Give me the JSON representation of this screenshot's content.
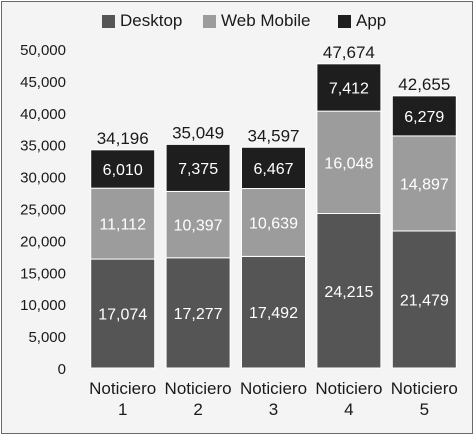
{
  "chart_data": {
    "type": "bar",
    "stacked": true,
    "categories": [
      [
        "Noticiero",
        "1"
      ],
      [
        "Noticiero",
        "2"
      ],
      [
        "Noticiero",
        "3"
      ],
      [
        "Noticiero",
        "4"
      ],
      [
        "Noticiero",
        "5"
      ]
    ],
    "series": [
      {
        "name": "Desktop",
        "color": "#555555",
        "values": [
          17074,
          17277,
          17492,
          24215,
          21479
        ]
      },
      {
        "name": "Web Mobile",
        "color": "#9c9c9c",
        "values": [
          11112,
          10397,
          10639,
          16048,
          14897
        ]
      },
      {
        "name": "App",
        "color": "#1e1e1e",
        "values": [
          6010,
          7375,
          6467,
          7412,
          6279
        ]
      }
    ],
    "value_labels": {
      "Desktop": [
        "17,074",
        "17,277",
        "17,492",
        "24,215",
        "21,479"
      ],
      "Web Mobile": [
        "11,112",
        "10,397",
        "10,639",
        "16,048",
        "14,897"
      ],
      "App": [
        "6,010",
        "7,375",
        "6,467",
        "7,412",
        "6,279"
      ]
    },
    "totals": [
      34196,
      35049,
      34597,
      47674,
      42655
    ],
    "total_labels": [
      "34,196",
      "35,049",
      "34,597",
      "47,674",
      "42,655"
    ],
    "yticks": [
      0,
      5000,
      10000,
      15000,
      20000,
      25000,
      30000,
      35000,
      40000,
      45000,
      50000
    ],
    "ytick_labels": [
      "0",
      "5,000",
      "10,000",
      "15,000",
      "20,000",
      "25,000",
      "30,000",
      "35,000",
      "40,000",
      "45,000",
      "50,000"
    ],
    "ylim": [
      0,
      50000
    ],
    "legend_position": "top-center",
    "grid": false
  }
}
